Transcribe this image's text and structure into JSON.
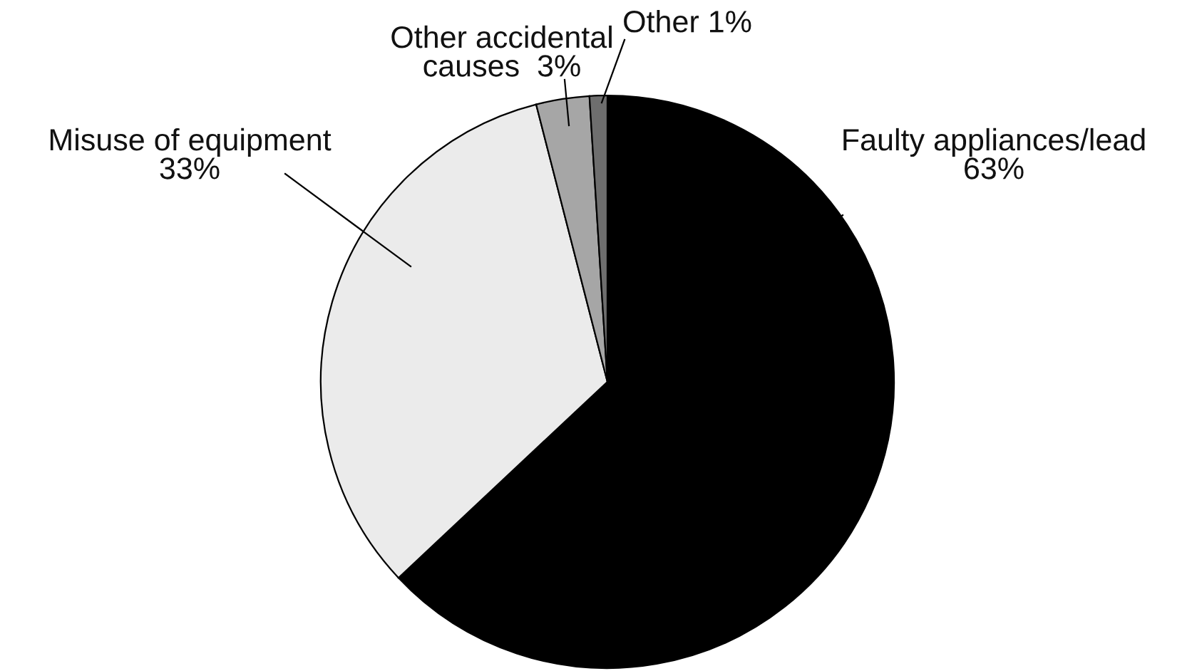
{
  "chart_data": {
    "type": "pie",
    "categories": [
      "Faulty appliances/lead",
      "Misuse of equipment",
      "Other accidental\ncauses",
      "Other"
    ],
    "values": [
      63,
      33,
      3,
      1
    ],
    "value_labels": [
      "63%",
      "33%",
      "3%",
      "1%"
    ],
    "colors": [
      "#000000",
      "#ebebeb",
      "#a6a6a6",
      "#6e6e6e"
    ]
  }
}
